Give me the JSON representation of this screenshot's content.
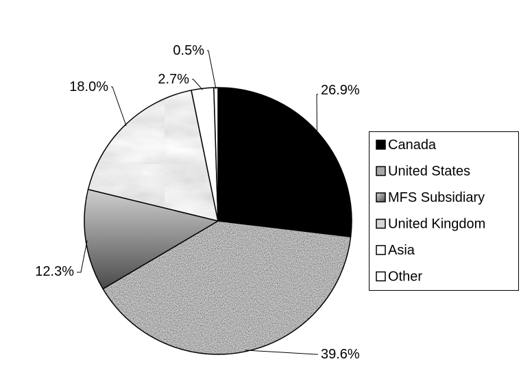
{
  "chart_data": {
    "type": "pie",
    "title": "",
    "series": [
      {
        "name": "",
        "categories": [
          "Canada",
          "United States",
          "MFS Subsidiary",
          "United Kingdom",
          "Asia",
          "Other"
        ],
        "values": [
          26.9,
          39.6,
          12.3,
          18.0,
          2.7,
          0.5
        ],
        "value_labels": [
          "26.9%",
          "39.6%",
          "12.3%",
          "18.0%",
          "2.7%",
          "0.5%"
        ]
      }
    ],
    "start_angle": "12 o'clock",
    "direction": "clockwise",
    "legend_position": "right",
    "slice_fills": [
      {
        "category": "Canada",
        "style": "solid",
        "color": "#000000"
      },
      {
        "category": "United States",
        "style": "speckled",
        "color": "#9a9a9a"
      },
      {
        "category": "MFS Subsidiary",
        "style": "gradient",
        "color": "#7a7a7a"
      },
      {
        "category": "United Kingdom",
        "style": "marble",
        "color": "#dcdcdc"
      },
      {
        "category": "Asia",
        "style": "solid",
        "color": "#ffffff"
      },
      {
        "category": "Other",
        "style": "solid",
        "color": "#ffffff"
      }
    ]
  }
}
